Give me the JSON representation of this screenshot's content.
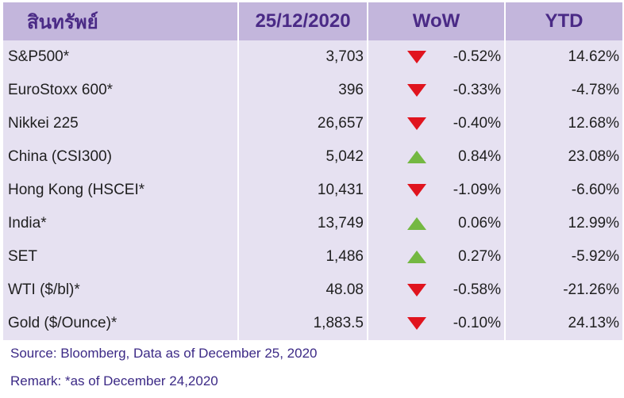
{
  "header": {
    "asset": "สินทรัพย์",
    "date": "25/12/2020",
    "wow": "WoW",
    "ytd": "YTD"
  },
  "colors": {
    "header_bg": "#c3b6dc",
    "header_text": "#4a2a86",
    "row_bg": "#e6e1f1",
    "down": "#e0141e",
    "up": "#74b842"
  },
  "rows": [
    {
      "name": "S&P500*",
      "value": "3,703",
      "dir": "down",
      "wow": "-0.52%",
      "ytd": "14.62%"
    },
    {
      "name": "EuroStoxx 600*",
      "value": "396",
      "dir": "down",
      "wow": "-0.33%",
      "ytd": "-4.78%"
    },
    {
      "name": "Nikkei 225",
      "value": "26,657",
      "dir": "down",
      "wow": "-0.40%",
      "ytd": "12.68%"
    },
    {
      "name": "China (CSI300)",
      "value": "5,042",
      "dir": "up",
      "wow": "0.84%",
      "ytd": "23.08%"
    },
    {
      "name": "Hong Kong (HSCEI*",
      "value": "10,431",
      "dir": "down",
      "wow": "-1.09%",
      "ytd": "-6.60%"
    },
    {
      "name": "India*",
      "value": "13,749",
      "dir": "up",
      "wow": "0.06%",
      "ytd": "12.99%"
    },
    {
      "name": "SET",
      "value": "1,486",
      "dir": "up",
      "wow": "0.27%",
      "ytd": "-5.92%"
    },
    {
      "name": "WTI ($/bl)*",
      "value": "48.08",
      "dir": "down",
      "wow": "-0.58%",
      "ytd": "-21.26%"
    },
    {
      "name": "Gold ($/Ounce)*",
      "value": "1,883.5",
      "dir": "down",
      "wow": "-0.10%",
      "ytd": "24.13%"
    }
  ],
  "notes": {
    "source": "Source: Bloomberg, Data as of December 25, 2020",
    "remark": "Remark: *as of December 24,2020"
  }
}
